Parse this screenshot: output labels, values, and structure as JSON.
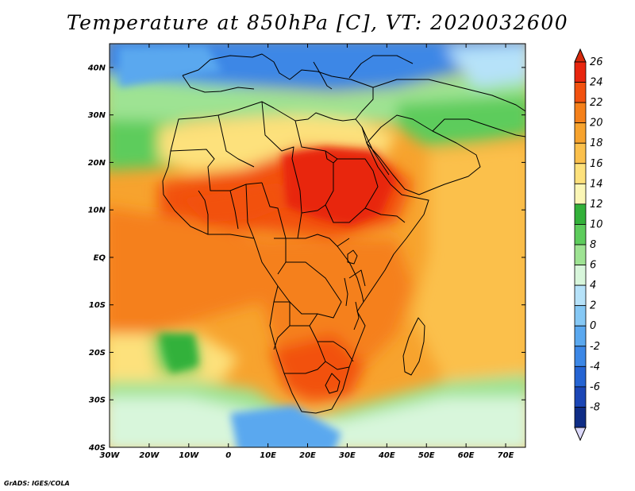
{
  "title": "Temperature at 850hPa [C], VT: 2020032600",
  "credit": "GrADS: IGES/COLA",
  "map": {
    "projection": "lat-lon",
    "lon_range": [
      -30,
      75
    ],
    "lat_range": [
      -40,
      45
    ],
    "lon_ticks": [
      {
        "value": -30,
        "label": "30W"
      },
      {
        "value": -20,
        "label": "20W"
      },
      {
        "value": -10,
        "label": "10W"
      },
      {
        "value": 0,
        "label": "0"
      },
      {
        "value": 10,
        "label": "10E"
      },
      {
        "value": 20,
        "label": "20E"
      },
      {
        "value": 30,
        "label": "30E"
      },
      {
        "value": 40,
        "label": "40E"
      },
      {
        "value": 50,
        "label": "50E"
      },
      {
        "value": 60,
        "label": "60E"
      },
      {
        "value": 70,
        "label": "70E"
      }
    ],
    "lat_ticks": [
      {
        "value": 40,
        "label": "40N"
      },
      {
        "value": 30,
        "label": "30N"
      },
      {
        "value": 20,
        "label": "20N"
      },
      {
        "value": 10,
        "label": "10N"
      },
      {
        "value": 0,
        "label": "EQ"
      },
      {
        "value": -10,
        "label": "10S"
      },
      {
        "value": -20,
        "label": "20S"
      },
      {
        "value": -30,
        "label": "30S"
      },
      {
        "value": -40,
        "label": "40S"
      }
    ]
  },
  "colorbar": {
    "levels": [
      {
        "label": "26",
        "color": "#e8250e"
      },
      {
        "label": "24",
        "color": "#f2510f"
      },
      {
        "label": "22",
        "color": "#f5801a"
      },
      {
        "label": "20",
        "color": "#f7a32e"
      },
      {
        "label": "18",
        "color": "#fbc04c"
      },
      {
        "label": "16",
        "color": "#fde17c"
      },
      {
        "label": "14",
        "color": "#fbf6b6"
      },
      {
        "label": "12",
        "color": "#33b13a"
      },
      {
        "label": "10",
        "color": "#5dcc5c"
      },
      {
        "label": "8",
        "color": "#9ee393"
      },
      {
        "label": "6",
        "color": "#d8f6db"
      },
      {
        "label": "4",
        "color": "#b6e2f9"
      },
      {
        "label": "2",
        "color": "#85c8f5"
      },
      {
        "label": "0",
        "color": "#5aa8ef"
      },
      {
        "label": "-2",
        "color": "#3c87e6"
      },
      {
        "label": "-4",
        "color": "#2564d3"
      },
      {
        "label": "-6",
        "color": "#1b46b6"
      },
      {
        "label": "-8",
        "color": "#0f2d86"
      }
    ],
    "top_triangle_color": "#d6290c",
    "bottom_triangle_color": "#dcd9fa"
  }
}
